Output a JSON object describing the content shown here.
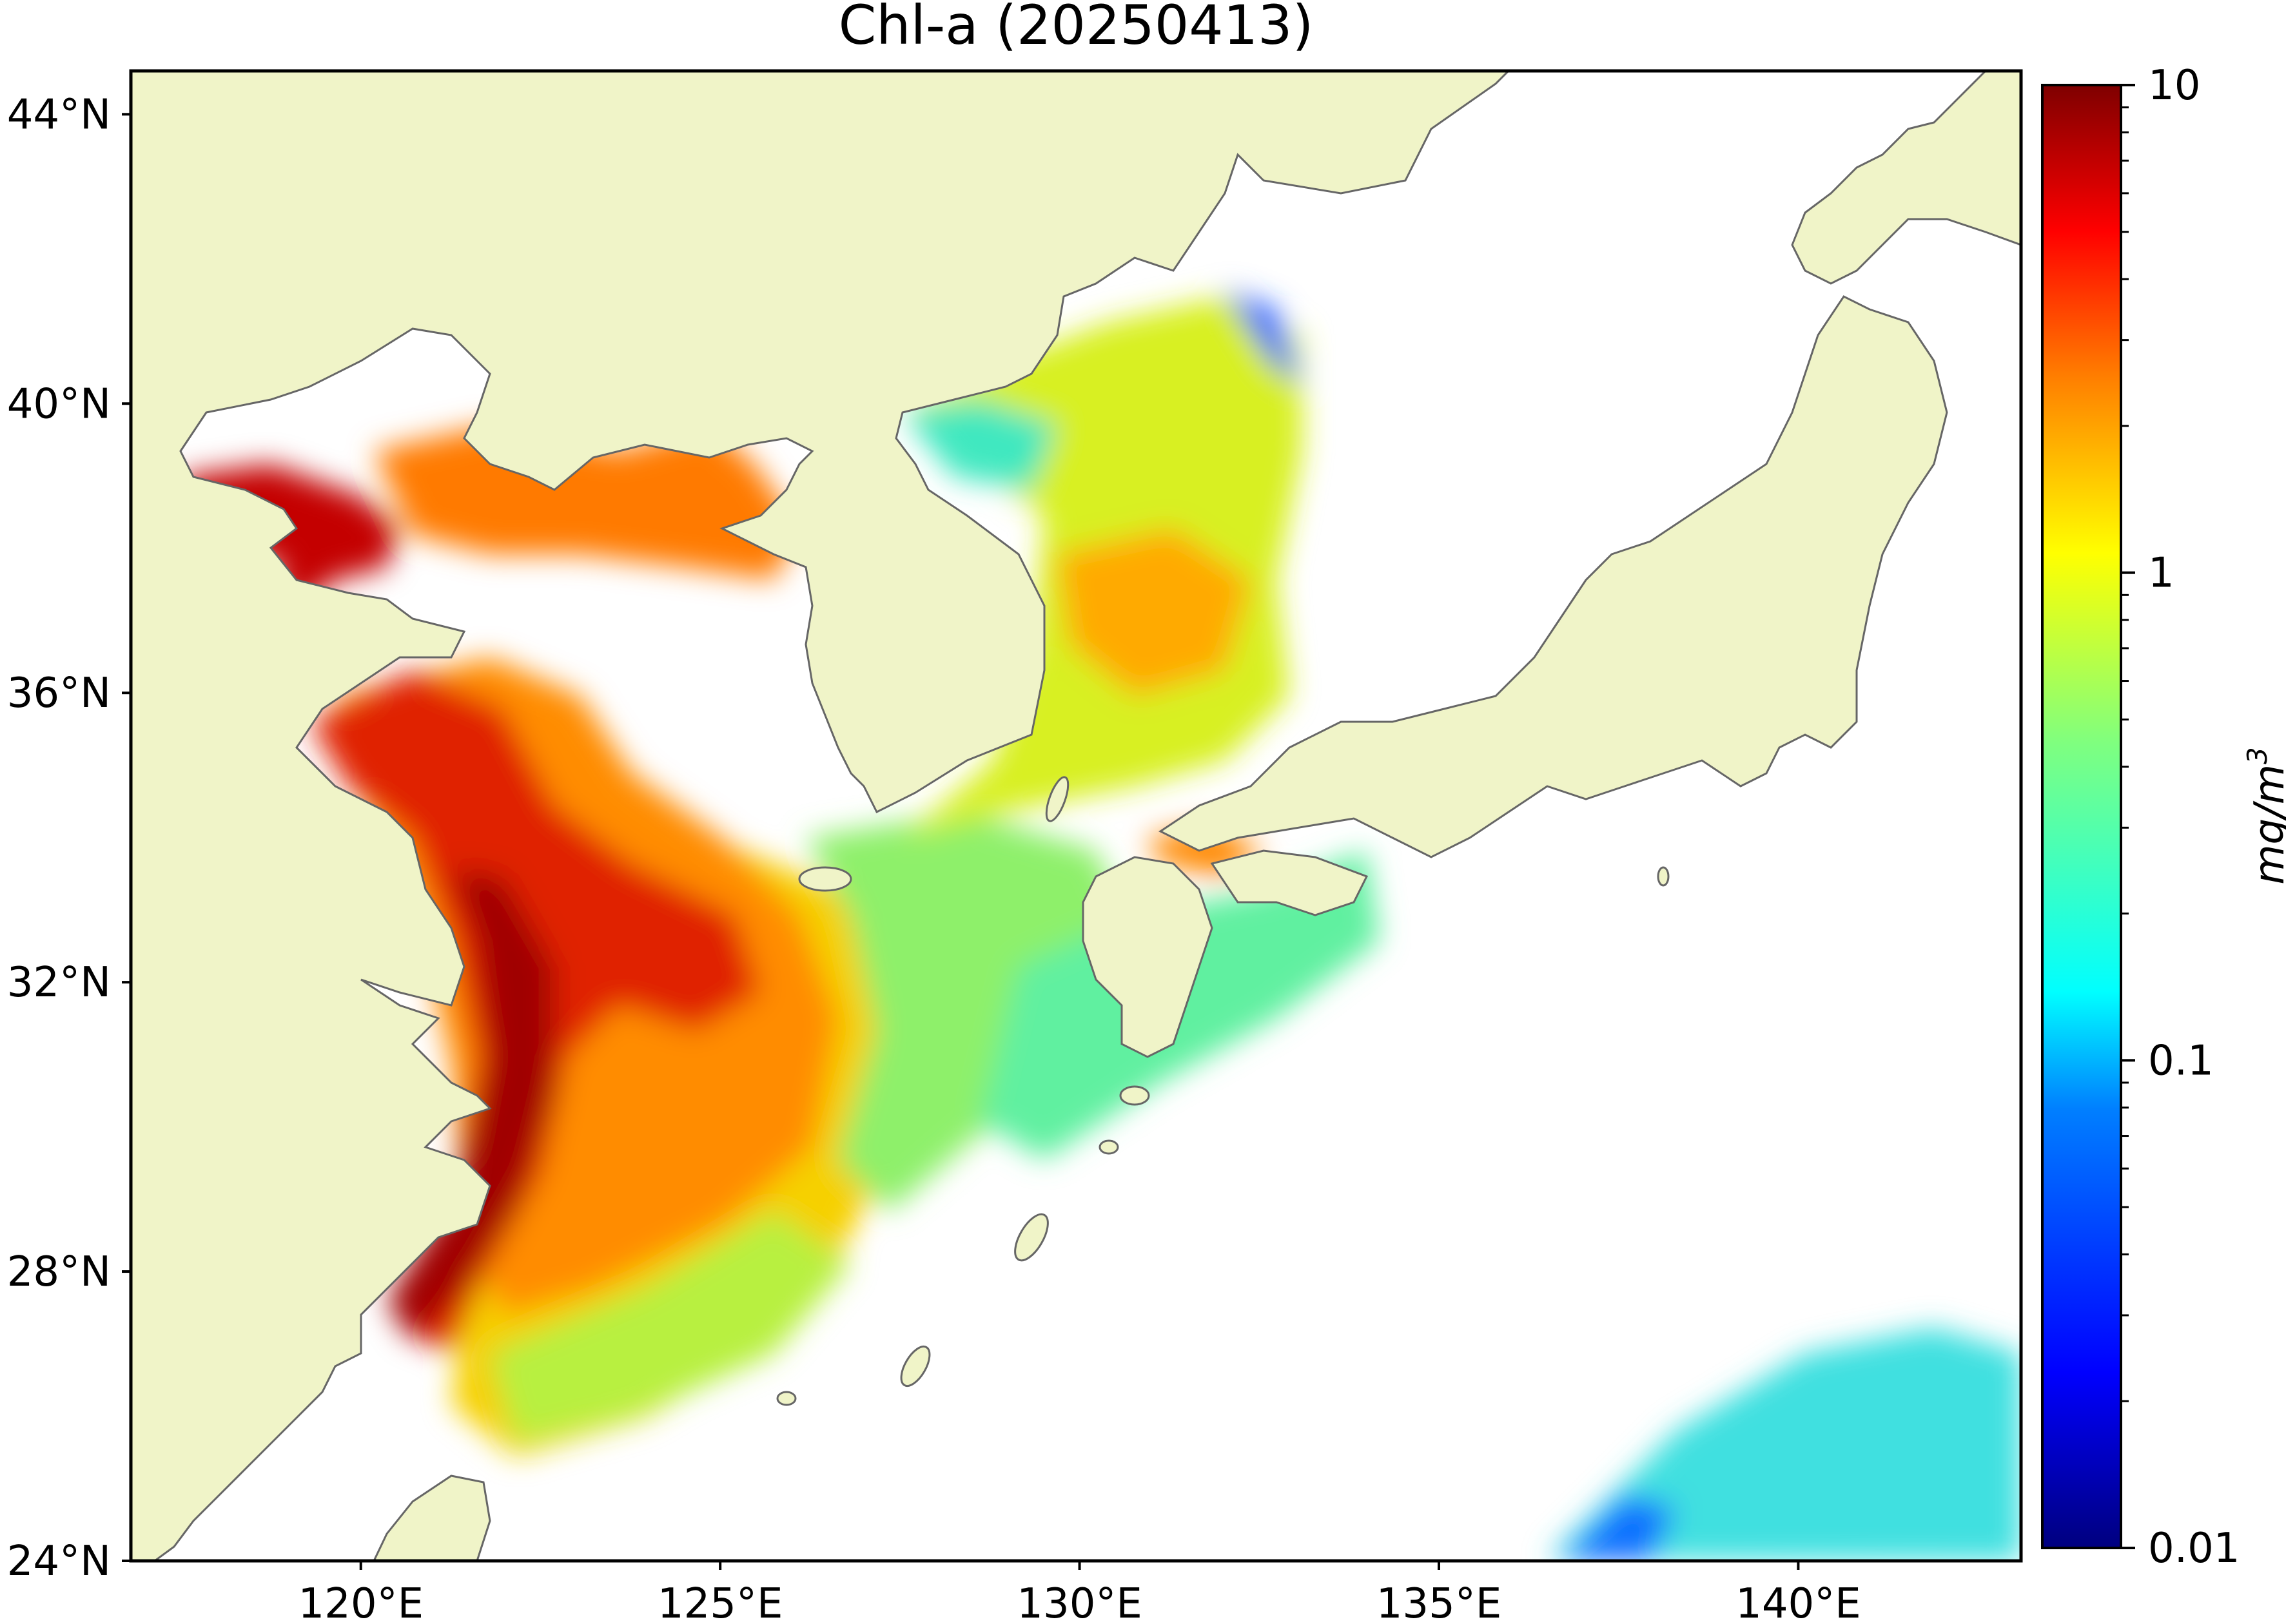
{
  "map": {
    "title": "Chl-a (20250413)",
    "variable": "Chl-a",
    "date": "20250413",
    "lon_range": [
      116.8,
      143.1
    ],
    "lat_range": [
      24.0,
      44.6
    ],
    "lon_ticks": [
      {
        "value": 120,
        "label": "120°E"
      },
      {
        "value": 125,
        "label": "125°E"
      },
      {
        "value": 130,
        "label": "130°E"
      },
      {
        "value": 135,
        "label": "135°E"
      },
      {
        "value": 140,
        "label": "140°E"
      }
    ],
    "lat_ticks": [
      {
        "value": 24,
        "label": "24°N"
      },
      {
        "value": 28,
        "label": "28°N"
      },
      {
        "value": 32,
        "label": "32°N"
      },
      {
        "value": 36,
        "label": "36°N"
      },
      {
        "value": 40,
        "label": "40°N"
      },
      {
        "value": 44,
        "label": "44°N"
      }
    ],
    "colors": {
      "land": "#f0f4c8",
      "coastline": "#666666",
      "no_data": "#ffffff",
      "frame": "#000000"
    }
  },
  "colorbar": {
    "label": "mg/m",
    "label_superscript": "3",
    "scale": "log",
    "range": [
      0.01,
      10
    ],
    "ticks": [
      {
        "value": 10,
        "label": "10"
      },
      {
        "value": 1,
        "label": "1"
      },
      {
        "value": 0.1,
        "label": "0.1"
      },
      {
        "value": 0.01,
        "label": "0.01"
      }
    ],
    "colormap": "jet",
    "stops": [
      "#00007f",
      "#0000ff",
      "#007fff",
      "#00ffff",
      "#7fff7f",
      "#ffff00",
      "#ff7f00",
      "#ff0000",
      "#7f0000"
    ]
  }
}
